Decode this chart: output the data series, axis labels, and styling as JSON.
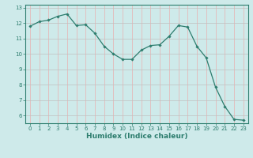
{
  "x": [
    0,
    1,
    2,
    3,
    4,
    5,
    6,
    7,
    8,
    9,
    10,
    11,
    12,
    13,
    14,
    15,
    16,
    17,
    18,
    19,
    20,
    21,
    22,
    23
  ],
  "y": [
    11.8,
    12.1,
    12.2,
    12.45,
    12.6,
    11.85,
    11.9,
    11.35,
    10.5,
    10.0,
    9.65,
    9.65,
    10.25,
    10.55,
    10.6,
    11.15,
    11.85,
    11.75,
    10.5,
    9.75,
    7.85,
    6.6,
    5.75,
    5.7
  ],
  "line_color": "#2d7d6e",
  "marker": "D",
  "markersize": 1.8,
  "linewidth": 0.9,
  "xlabel": "Humidex (Indice chaleur)",
  "xlabel_fontsize": 6.5,
  "xlim": [
    -0.5,
    23.5
  ],
  "ylim": [
    5.5,
    13.2
  ],
  "yticks": [
    6,
    7,
    8,
    9,
    10,
    11,
    12,
    13
  ],
  "xticks": [
    0,
    1,
    2,
    3,
    4,
    5,
    6,
    7,
    8,
    9,
    10,
    11,
    12,
    13,
    14,
    15,
    16,
    17,
    18,
    19,
    20,
    21,
    22,
    23
  ],
  "tick_fontsize": 5.0,
  "bg_color": "#ceeaea",
  "plot_bg_color": "#ceeaea",
  "grid_color_major": "#c0c0c0",
  "grid_color_minor": "#e8b0b0",
  "spine_color": "#2d7d6e"
}
